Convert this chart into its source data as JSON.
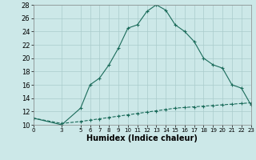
{
  "title": "",
  "xlabel": "Humidex (Indice chaleur)",
  "background_color": "#cce8e8",
  "grid_color": "#aacccc",
  "line_color": "#1a6b5a",
  "xlim": [
    0,
    23
  ],
  "ylim": [
    10,
    28
  ],
  "xticks": [
    0,
    3,
    5,
    6,
    7,
    8,
    9,
    10,
    11,
    12,
    13,
    14,
    15,
    16,
    17,
    18,
    19,
    20,
    21,
    22,
    23
  ],
  "yticks": [
    10,
    12,
    14,
    16,
    18,
    20,
    22,
    24,
    26,
    28
  ],
  "curve1_x": [
    0,
    3,
    5,
    6,
    7,
    8,
    9,
    10,
    11,
    12,
    13,
    14,
    15,
    16,
    17,
    18,
    19,
    20,
    21,
    22,
    23
  ],
  "curve1_y": [
    11.0,
    10.0,
    12.5,
    16.0,
    17.0,
    19.0,
    21.5,
    24.5,
    25.0,
    27.0,
    28.0,
    27.2,
    25.0,
    24.0,
    22.5,
    20.0,
    19.0,
    18.5,
    16.0,
    15.5,
    13.0
  ],
  "curve2_x": [
    0,
    3,
    5,
    6,
    7,
    8,
    9,
    10,
    11,
    12,
    13,
    14,
    15,
    16,
    17,
    18,
    19,
    20,
    21,
    22,
    23
  ],
  "curve2_y": [
    11.0,
    10.2,
    10.5,
    10.7,
    10.9,
    11.1,
    11.3,
    11.5,
    11.7,
    11.9,
    12.1,
    12.3,
    12.5,
    12.6,
    12.7,
    12.8,
    12.9,
    13.0,
    13.1,
    13.2,
    13.3
  ],
  "tick_fontsize": 6,
  "xlabel_fontsize": 7,
  "marker_size": 3,
  "linewidth": 0.8
}
